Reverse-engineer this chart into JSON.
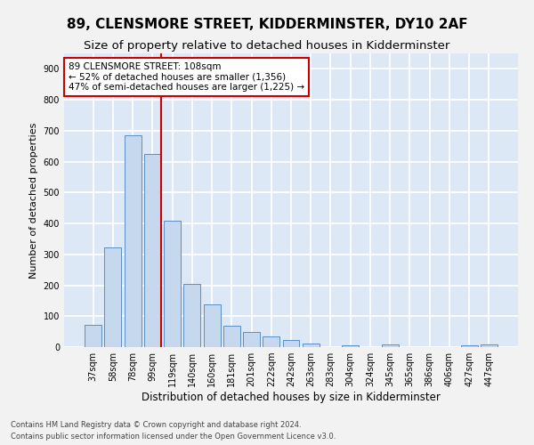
{
  "title": "89, CLENSMORE STREET, KIDDERMINSTER, DY10 2AF",
  "subtitle": "Size of property relative to detached houses in Kidderminster",
  "xlabel": "Distribution of detached houses by size in Kidderminster",
  "ylabel": "Number of detached properties",
  "categories": [
    "37sqm",
    "58sqm",
    "78sqm",
    "99sqm",
    "119sqm",
    "140sqm",
    "160sqm",
    "181sqm",
    "201sqm",
    "222sqm",
    "242sqm",
    "263sqm",
    "283sqm",
    "304sqm",
    "324sqm",
    "345sqm",
    "365sqm",
    "386sqm",
    "406sqm",
    "427sqm",
    "447sqm"
  ],
  "values": [
    72,
    322,
    685,
    625,
    410,
    205,
    137,
    70,
    48,
    35,
    23,
    11,
    0,
    5,
    0,
    10,
    0,
    0,
    0,
    5,
    10
  ],
  "bar_color": "#c5d8ee",
  "bar_edge_color": "#5b8ec4",
  "annotation_text": "89 CLENSMORE STREET: 108sqm\n← 52% of detached houses are smaller (1,356)\n47% of semi-detached houses are larger (1,225) →",
  "annotation_box_color": "#ffffff",
  "annotation_box_edge": "#cc0000",
  "vline_color": "#cc0000",
  "vline_x_index": 3,
  "footer": "Contains HM Land Registry data © Crown copyright and database right 2024.\nContains public sector information licensed under the Open Government Licence v3.0.",
  "ylim": [
    0,
    950
  ],
  "yticks": [
    0,
    100,
    200,
    300,
    400,
    500,
    600,
    700,
    800,
    900
  ],
  "background_color": "#dce8f5",
  "grid_color": "#ffffff",
  "fig_background": "#f2f2f2",
  "title_fontsize": 11,
  "subtitle_fontsize": 9.5,
  "xlabel_fontsize": 8.5,
  "ylabel_fontsize": 8,
  "tick_fontsize": 7,
  "annotation_fontsize": 7.5,
  "footer_fontsize": 6
}
